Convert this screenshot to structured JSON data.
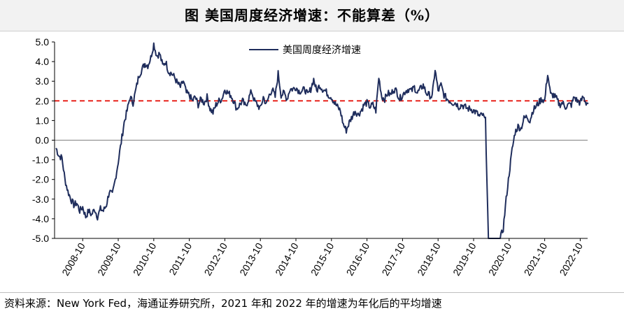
{
  "title": "图  美国周度经济增速：不能算差（%）",
  "source_note": "资料来源：New York Fed，海通证券研究所，2021 年和 2022 年的增速为年化后的平均增速",
  "colors": {
    "series": "#1f2d5c",
    "reference": "#e8231b",
    "zero": "#808080"
  },
  "chart_data": {
    "type": "line",
    "title": "图  美国周度经济增速：不能算差（%）",
    "xlabel": "",
    "ylabel": "",
    "ylim": [
      -5.0,
      5.0
    ],
    "xlim": [
      "2008-01",
      "2022-12"
    ],
    "y_ticks": [
      "5.0",
      "4.0",
      "3.0",
      "2.0",
      "1.0",
      "0.0",
      "-1.0",
      "-2.0",
      "-3.0",
      "-4.0",
      "-5.0"
    ],
    "x_ticks": [
      "2008-10",
      "2009-10",
      "2010-10",
      "2011-10",
      "2012-10",
      "2013-10",
      "2014-10",
      "2015-10",
      "2016-10",
      "2017-10",
      "2018-10",
      "2019-10",
      "2020-10",
      "2021-10",
      "2022-10"
    ],
    "reference_line": {
      "value": 2.0,
      "style": "dashed"
    },
    "legend": {
      "position": "top-center"
    },
    "series": [
      {
        "name": "美国周度经济增速",
        "points": [
          [
            "2008-01",
            -0.4
          ],
          [
            "2008-02",
            -0.8
          ],
          [
            "2008-03",
            -0.9
          ],
          [
            "2008-04",
            -2.0
          ],
          [
            "2008-05",
            -2.6
          ],
          [
            "2008-06",
            -3.0
          ],
          [
            "2008-07",
            -3.3
          ],
          [
            "2008-08",
            -3.2
          ],
          [
            "2008-09",
            -3.6
          ],
          [
            "2008-10",
            -3.4
          ],
          [
            "2008-11",
            -3.9
          ],
          [
            "2008-12",
            -3.6
          ],
          [
            "2009-01",
            -3.8
          ],
          [
            "2009-02",
            -3.5
          ],
          [
            "2009-03",
            -3.9
          ],
          [
            "2009-04",
            -3.5
          ],
          [
            "2009-05",
            -3.6
          ],
          [
            "2009-06",
            -3.3
          ],
          [
            "2009-07",
            -2.6
          ],
          [
            "2009-08",
            -2.8
          ],
          [
            "2009-09",
            -2.0
          ],
          [
            "2009-10",
            -1.1
          ],
          [
            "2009-11",
            -0.1
          ],
          [
            "2009-12",
            0.9
          ],
          [
            "2010-01",
            1.5
          ],
          [
            "2010-02",
            2.2
          ],
          [
            "2010-03",
            1.9
          ],
          [
            "2010-04",
            2.6
          ],
          [
            "2010-05",
            3.3
          ],
          [
            "2010-06",
            3.6
          ],
          [
            "2010-07",
            3.9
          ],
          [
            "2010-08",
            3.8
          ],
          [
            "2010-09",
            4.2
          ],
          [
            "2010-10",
            4.9
          ],
          [
            "2010-11",
            4.3
          ],
          [
            "2010-12",
            4.4
          ],
          [
            "2011-01",
            3.8
          ],
          [
            "2011-02",
            4.0
          ],
          [
            "2011-03",
            3.5
          ],
          [
            "2011-04",
            3.4
          ],
          [
            "2011-05",
            3.2
          ],
          [
            "2011-06",
            2.9
          ],
          [
            "2011-07",
            2.7
          ],
          [
            "2011-08",
            3.0
          ],
          [
            "2011-09",
            2.4
          ],
          [
            "2011-10",
            2.3
          ],
          [
            "2011-11",
            2.0
          ],
          [
            "2011-12",
            2.2
          ],
          [
            "2012-01",
            1.8
          ],
          [
            "2012-02",
            2.1
          ],
          [
            "2012-03",
            1.9
          ],
          [
            "2012-04",
            2.2
          ],
          [
            "2012-05",
            1.6
          ],
          [
            "2012-06",
            1.4
          ],
          [
            "2012-07",
            1.8
          ],
          [
            "2012-08",
            2.0
          ],
          [
            "2012-09",
            2.1
          ],
          [
            "2012-10",
            2.6
          ],
          [
            "2012-11",
            2.4
          ],
          [
            "2012-12",
            2.3
          ],
          [
            "2013-01",
            2.0
          ],
          [
            "2013-02",
            1.6
          ],
          [
            "2013-03",
            1.8
          ],
          [
            "2013-04",
            2.0
          ],
          [
            "2013-05",
            1.7
          ],
          [
            "2013-06",
            2.1
          ],
          [
            "2013-07",
            2.5
          ],
          [
            "2013-08",
            2.0
          ],
          [
            "2013-09",
            1.8
          ],
          [
            "2013-10",
            1.6
          ],
          [
            "2013-11",
            2.2
          ],
          [
            "2013-12",
            1.8
          ],
          [
            "2014-01",
            2.3
          ],
          [
            "2014-02",
            2.6
          ],
          [
            "2014-03",
            2.2
          ],
          [
            "2014-04",
            3.4
          ],
          [
            "2014-05",
            2.3
          ],
          [
            "2014-06",
            2.4
          ],
          [
            "2014-07",
            2.1
          ],
          [
            "2014-08",
            2.6
          ],
          [
            "2014-09",
            2.6
          ],
          [
            "2014-10",
            2.7
          ],
          [
            "2014-11",
            2.5
          ],
          [
            "2014-12",
            2.5
          ],
          [
            "2015-01",
            2.6
          ],
          [
            "2015-02",
            2.3
          ],
          [
            "2015-03",
            2.6
          ],
          [
            "2015-04",
            3.1
          ],
          [
            "2015-05",
            2.5
          ],
          [
            "2015-06",
            2.8
          ],
          [
            "2015-07",
            2.6
          ],
          [
            "2015-08",
            2.5
          ],
          [
            "2015-09",
            2.3
          ],
          [
            "2015-10",
            2.2
          ],
          [
            "2015-11",
            1.9
          ],
          [
            "2015-12",
            1.7
          ],
          [
            "2016-01",
            1.5
          ],
          [
            "2016-02",
            0.8
          ],
          [
            "2016-03",
            0.5
          ],
          [
            "2016-04",
            0.9
          ],
          [
            "2016-05",
            1.2
          ],
          [
            "2016-06",
            1.5
          ],
          [
            "2016-07",
            1.3
          ],
          [
            "2016-08",
            1.5
          ],
          [
            "2016-09",
            1.8
          ],
          [
            "2016-10",
            1.9
          ],
          [
            "2016-11",
            1.7
          ],
          [
            "2016-12",
            1.8
          ],
          [
            "2017-01",
            1.5
          ],
          [
            "2017-02",
            3.2
          ],
          [
            "2017-03",
            2.2
          ],
          [
            "2017-04",
            2.1
          ],
          [
            "2017-05",
            2.4
          ],
          [
            "2017-06",
            2.3
          ],
          [
            "2017-07",
            2.6
          ],
          [
            "2017-08",
            2.5
          ],
          [
            "2017-09",
            2.1
          ],
          [
            "2017-10",
            2.3
          ],
          [
            "2017-11",
            2.5
          ],
          [
            "2017-12",
            2.6
          ],
          [
            "2018-01",
            2.5
          ],
          [
            "2018-02",
            2.7
          ],
          [
            "2018-03",
            2.4
          ],
          [
            "2018-04",
            2.6
          ],
          [
            "2018-05",
            2.8
          ],
          [
            "2018-06",
            2.4
          ],
          [
            "2018-07",
            2.3
          ],
          [
            "2018-08",
            2.2
          ],
          [
            "2018-09",
            3.6
          ],
          [
            "2018-10",
            2.5
          ],
          [
            "2018-11",
            2.8
          ],
          [
            "2018-12",
            2.3
          ],
          [
            "2019-01",
            2.1
          ],
          [
            "2019-02",
            2.0
          ],
          [
            "2019-03",
            1.9
          ],
          [
            "2019-04",
            1.9
          ],
          [
            "2019-05",
            1.7
          ],
          [
            "2019-06",
            1.8
          ],
          [
            "2019-07",
            1.7
          ],
          [
            "2019-08",
            1.6
          ],
          [
            "2019-09",
            1.6
          ],
          [
            "2019-10",
            1.5
          ],
          [
            "2019-11",
            1.4
          ],
          [
            "2019-12",
            1.2
          ],
          [
            "2020-01",
            1.3
          ],
          [
            "2020-02",
            1.0
          ],
          [
            "2020-03",
            -5.0
          ],
          [
            "2020-04",
            -5.0
          ],
          [
            "2020-05",
            -5.0
          ],
          [
            "2020-06",
            -5.0
          ],
          [
            "2020-07",
            -5.0
          ],
          [
            "2020-08",
            -4.5
          ],
          [
            "2020-09",
            -3.0
          ],
          [
            "2020-10",
            -1.7
          ],
          [
            "2020-11",
            -0.5
          ],
          [
            "2020-12",
            0.4
          ],
          [
            "2021-01",
            0.7
          ],
          [
            "2021-02",
            0.6
          ],
          [
            "2021-03",
            1.1
          ],
          [
            "2021-04",
            1.2
          ],
          [
            "2021-05",
            1.0
          ],
          [
            "2021-06",
            1.5
          ],
          [
            "2021-07",
            1.7
          ],
          [
            "2021-08",
            1.9
          ],
          [
            "2021-09",
            2.1
          ],
          [
            "2021-10",
            2.0
          ],
          [
            "2021-11",
            3.4
          ],
          [
            "2021-12",
            2.3
          ],
          [
            "2022-01",
            2.3
          ],
          [
            "2022-02",
            2.1
          ],
          [
            "2022-03",
            1.8
          ],
          [
            "2022-04",
            1.9
          ],
          [
            "2022-05",
            1.7
          ],
          [
            "2022-06",
            1.8
          ],
          [
            "2022-07",
            1.8
          ],
          [
            "2022-08",
            2.2
          ],
          [
            "2022-09",
            2.0
          ],
          [
            "2022-10",
            1.9
          ],
          [
            "2022-11",
            2.2
          ],
          [
            "2022-12",
            1.9
          ]
        ]
      }
    ]
  }
}
